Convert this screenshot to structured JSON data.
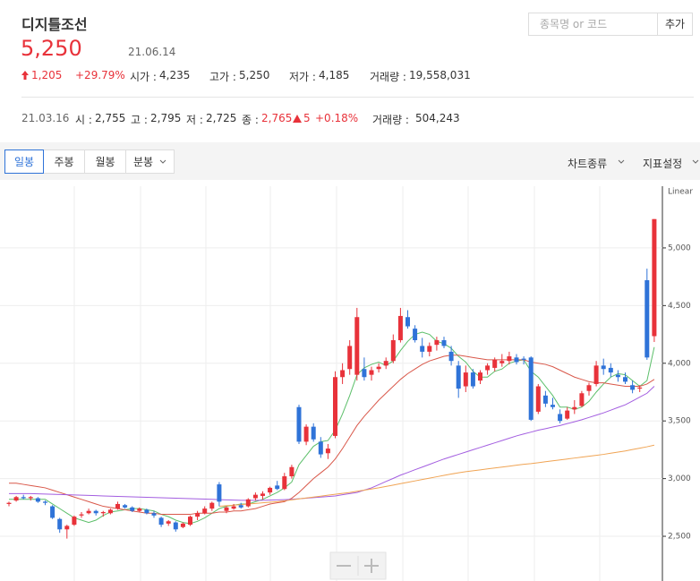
{
  "header": {
    "title": "디지틀조선",
    "price": "5,250",
    "date": "21.06.14",
    "change": "1,205",
    "change_pct": "+29.79%",
    "stats": [
      {
        "label": "시가 :",
        "value": "4,235"
      },
      {
        "label": "고가 :",
        "value": "5,250"
      },
      {
        "label": "저가 :",
        "value": "4,185"
      },
      {
        "label": "거래량 :",
        "value": "19,558,031"
      }
    ],
    "search_placeholder": "종목명 or 코드",
    "add_button": "추가"
  },
  "hover": {
    "date": "21.03.16",
    "stats": [
      {
        "label": "시 :",
        "value": "2,755"
      },
      {
        "label": "고 :",
        "value": "2,795"
      },
      {
        "label": "저 :",
        "value": "2,725"
      }
    ],
    "close_label": "종 :",
    "close": "2,765",
    "change": "5",
    "change_pct": "+0.18%",
    "volume_label": "거래량 :",
    "volume": "504,243"
  },
  "toolbar": {
    "tabs": [
      "일봉",
      "주봉",
      "월봉",
      "분봉"
    ],
    "right": [
      "차트종류",
      "지표설정"
    ]
  },
  "chart_data": {
    "type": "candlestick",
    "scale_label": "Linear",
    "up_color": "#e8323a",
    "down_color": "#2f73d8",
    "grid": true,
    "ylim": [
      2120,
      5535
    ],
    "yticks": [
      {
        "value": 2500,
        "label": "2,500"
      },
      {
        "value": 3000,
        "label": "3,000"
      },
      {
        "value": 3500,
        "label": "3,500"
      },
      {
        "value": 4000,
        "label": "4,000"
      },
      {
        "value": 4500,
        "label": "4,500"
      },
      {
        "value": 5000,
        "label": "5,000"
      }
    ],
    "candles": [
      [
        2780,
        2800,
        2760,
        2790
      ],
      [
        2810,
        2850,
        2800,
        2840
      ],
      [
        2840,
        2860,
        2820,
        2830
      ],
      [
        2830,
        2850,
        2810,
        2840
      ],
      [
        2830,
        2840,
        2790,
        2800
      ],
      [
        2800,
        2810,
        2770,
        2790
      ],
      [
        2760,
        2770,
        2650,
        2660
      ],
      [
        2650,
        2660,
        2530,
        2560
      ],
      [
        2560,
        2600,
        2480,
        2590
      ],
      [
        2600,
        2680,
        2590,
        2670
      ],
      [
        2680,
        2710,
        2660,
        2690
      ],
      [
        2700,
        2740,
        2690,
        2720
      ],
      [
        2720,
        2730,
        2680,
        2700
      ],
      [
        2700,
        2720,
        2670,
        2710
      ],
      [
        2700,
        2740,
        2690,
        2730
      ],
      [
        2740,
        2800,
        2730,
        2780
      ],
      [
        2770,
        2780,
        2740,
        2750
      ],
      [
        2750,
        2760,
        2710,
        2720
      ],
      [
        2720,
        2750,
        2710,
        2740
      ],
      [
        2730,
        2740,
        2690,
        2700
      ],
      [
        2700,
        2720,
        2660,
        2680
      ],
      [
        2660,
        2670,
        2580,
        2600
      ],
      [
        2610,
        2640,
        2590,
        2630
      ],
      [
        2620,
        2630,
        2540,
        2560
      ],
      [
        2580,
        2620,
        2570,
        2610
      ],
      [
        2600,
        2680,
        2590,
        2670
      ],
      [
        2670,
        2720,
        2640,
        2700
      ],
      [
        2700,
        2760,
        2690,
        2740
      ],
      [
        2740,
        2800,
        2720,
        2790
      ],
      [
        2950,
        2970,
        2760,
        2800
      ],
      [
        2720,
        2760,
        2700,
        2750
      ],
      [
        2740,
        2780,
        2730,
        2760
      ],
      [
        2770,
        2790,
        2740,
        2750
      ],
      [
        2760,
        2830,
        2750,
        2820
      ],
      [
        2830,
        2880,
        2810,
        2860
      ],
      [
        2850,
        2890,
        2820,
        2870
      ],
      [
        2880,
        2930,
        2860,
        2920
      ],
      [
        2940,
        2980,
        2900,
        2910
      ],
      [
        2910,
        3050,
        2900,
        3020
      ],
      [
        3020,
        3120,
        3000,
        3100
      ],
      [
        3620,
        3640,
        3300,
        3320
      ],
      [
        3320,
        3470,
        3290,
        3450
      ],
      [
        3450,
        3480,
        3320,
        3340
      ],
      [
        3320,
        3360,
        3180,
        3210
      ],
      [
        3220,
        3300,
        3170,
        3260
      ],
      [
        3370,
        3930,
        3350,
        3880
      ],
      [
        3880,
        4000,
        3820,
        3940
      ],
      [
        3950,
        4200,
        3900,
        4150
      ],
      [
        3900,
        4480,
        3850,
        4400
      ],
      [
        3950,
        4050,
        3850,
        3880
      ],
      [
        3900,
        3970,
        3850,
        3940
      ],
      [
        3950,
        4000,
        3920,
        3970
      ],
      [
        3980,
        4050,
        3950,
        4020
      ],
      [
        4020,
        4250,
        4000,
        4200
      ],
      [
        4200,
        4480,
        4180,
        4410
      ],
      [
        4400,
        4460,
        4300,
        4320
      ],
      [
        4300,
        4330,
        4180,
        4200
      ],
      [
        4150,
        4220,
        4050,
        4100
      ],
      [
        4100,
        4180,
        4060,
        4150
      ],
      [
        4160,
        4230,
        4110,
        4200
      ],
      [
        4200,
        4230,
        4130,
        4150
      ],
      [
        4100,
        4150,
        3980,
        4020
      ],
      [
        3980,
        4020,
        3700,
        3780
      ],
      [
        3800,
        3980,
        3750,
        3920
      ],
      [
        3920,
        3950,
        3780,
        3800
      ],
      [
        3850,
        3940,
        3820,
        3920
      ],
      [
        3940,
        4000,
        3900,
        3980
      ],
      [
        3960,
        4050,
        3930,
        4030
      ],
      [
        4000,
        4080,
        3970,
        4020
      ],
      [
        4020,
        4100,
        3990,
        4060
      ],
      [
        4050,
        4080,
        3990,
        4010
      ],
      [
        4040,
        4060,
        3990,
        4030
      ],
      [
        4050,
        4060,
        3500,
        3510
      ],
      [
        3580,
        3820,
        3560,
        3800
      ],
      [
        3720,
        3760,
        3620,
        3650
      ],
      [
        3640,
        3700,
        3600,
        3620
      ],
      [
        3560,
        3600,
        3480,
        3500
      ],
      [
        3520,
        3620,
        3510,
        3590
      ],
      [
        3600,
        3680,
        3560,
        3620
      ],
      [
        3630,
        3760,
        3620,
        3740
      ],
      [
        3760,
        3830,
        3720,
        3810
      ],
      [
        3820,
        4020,
        3800,
        3980
      ],
      [
        3980,
        4040,
        3900,
        3950
      ],
      [
        3960,
        4000,
        3880,
        3920
      ],
      [
        3900,
        3940,
        3840,
        3880
      ],
      [
        3880,
        3920,
        3820,
        3840
      ],
      [
        3810,
        3850,
        3740,
        3770
      ],
      [
        3780,
        3810,
        3750,
        3790
      ],
      [
        4720,
        4820,
        4030,
        4050
      ],
      [
        4235,
        5250,
        4185,
        5250
      ]
    ],
    "series": [
      {
        "color": "#5cbf6a",
        "values": [
          2820,
          2820,
          2820,
          2820,
          2820,
          2820,
          2780,
          2740,
          2700,
          2660,
          2640,
          2620,
          2640,
          2680,
          2710,
          2720,
          2730,
          2740,
          2740,
          2730,
          2720,
          2690,
          2670,
          2640,
          2620,
          2610,
          2630,
          2660,
          2700,
          2740,
          2760,
          2770,
          2780,
          2780,
          2800,
          2820,
          2850,
          2880,
          2920,
          2970,
          3120,
          3200,
          3280,
          3320,
          3330,
          3420,
          3560,
          3720,
          3900,
          3960,
          3990,
          4010,
          3980,
          4020,
          4110,
          4190,
          4250,
          4270,
          4250,
          4190,
          4170,
          4130,
          4060,
          4010,
          3930,
          3880,
          3880,
          3930,
          3950,
          4000,
          4020,
          4030,
          3930,
          3880,
          3800,
          3720,
          3620,
          3620,
          3600,
          3620,
          3670,
          3750,
          3820,
          3880,
          3910,
          3900,
          3850,
          3800,
          3850,
          4140
        ]
      },
      {
        "color": "#d9584a",
        "values": [
          2960,
          2960,
          2950,
          2940,
          2930,
          2920,
          2900,
          2880,
          2860,
          2840,
          2820,
          2800,
          2780,
          2760,
          2750,
          2740,
          2730,
          2720,
          2710,
          2700,
          2700,
          2690,
          2690,
          2690,
          2690,
          2690,
          2700,
          2700,
          2700,
          2710,
          2710,
          2720,
          2720,
          2730,
          2740,
          2760,
          2780,
          2790,
          2800,
          2830,
          2880,
          2940,
          3000,
          3050,
          3100,
          3170,
          3260,
          3360,
          3460,
          3540,
          3610,
          3680,
          3740,
          3800,
          3860,
          3910,
          3950,
          3990,
          4020,
          4040,
          4060,
          4070,
          4070,
          4060,
          4050,
          4040,
          4030,
          4030,
          4030,
          4030,
          4030,
          4030,
          4010,
          4000,
          3990,
          3970,
          3940,
          3910,
          3880,
          3860,
          3840,
          3830,
          3830,
          3820,
          3810,
          3800,
          3800,
          3800,
          3820,
          3860
        ]
      },
      {
        "color": "#a35ee0",
        "values": [
          2870,
          2870,
          2870,
          2870,
          2868,
          2866,
          2864,
          2862,
          2860,
          2858,
          2856,
          2854,
          2852,
          2850,
          2848,
          2846,
          2844,
          2842,
          2840,
          2838,
          2836,
          2834,
          2832,
          2830,
          2828,
          2826,
          2824,
          2822,
          2820,
          2818,
          2816,
          2814,
          2812,
          2812,
          2812,
          2812,
          2814,
          2816,
          2818,
          2820,
          2825,
          2830,
          2835,
          2840,
          2845,
          2850,
          2860,
          2870,
          2880,
          2900,
          2920,
          2947,
          2975,
          3002,
          3030,
          3053,
          3077,
          3100,
          3123,
          3147,
          3170,
          3190,
          3210,
          3230,
          3250,
          3270,
          3290,
          3310,
          3330,
          3350,
          3370,
          3387,
          3403,
          3420,
          3433,
          3447,
          3460,
          3477,
          3493,
          3510,
          3530,
          3550,
          3570,
          3593,
          3617,
          3640,
          3673,
          3707,
          3740,
          3800
        ]
      },
      {
        "color": "#f0a454",
        "values": [
          null,
          null,
          null,
          null,
          null,
          null,
          null,
          null,
          null,
          null,
          null,
          null,
          null,
          null,
          null,
          null,
          null,
          null,
          null,
          null,
          null,
          null,
          null,
          null,
          null,
          null,
          null,
          null,
          null,
          2760,
          2765,
          2770,
          2775,
          2780,
          2785,
          2790,
          2795,
          2800,
          2808,
          2816,
          2824,
          2832,
          2840,
          2848,
          2856,
          2864,
          2872,
          2880,
          2890,
          2900,
          2910,
          2920,
          2932,
          2944,
          2956,
          2968,
          2980,
          2992,
          3004,
          3016,
          3028,
          3040,
          3050,
          3060,
          3068,
          3076,
          3084,
          3092,
          3100,
          3108,
          3116,
          3124,
          3130,
          3138,
          3146,
          3154,
          3162,
          3170,
          3178,
          3186,
          3194,
          3202,
          3210,
          3220,
          3230,
          3240,
          3252,
          3264,
          3276,
          3290
        ]
      }
    ]
  }
}
